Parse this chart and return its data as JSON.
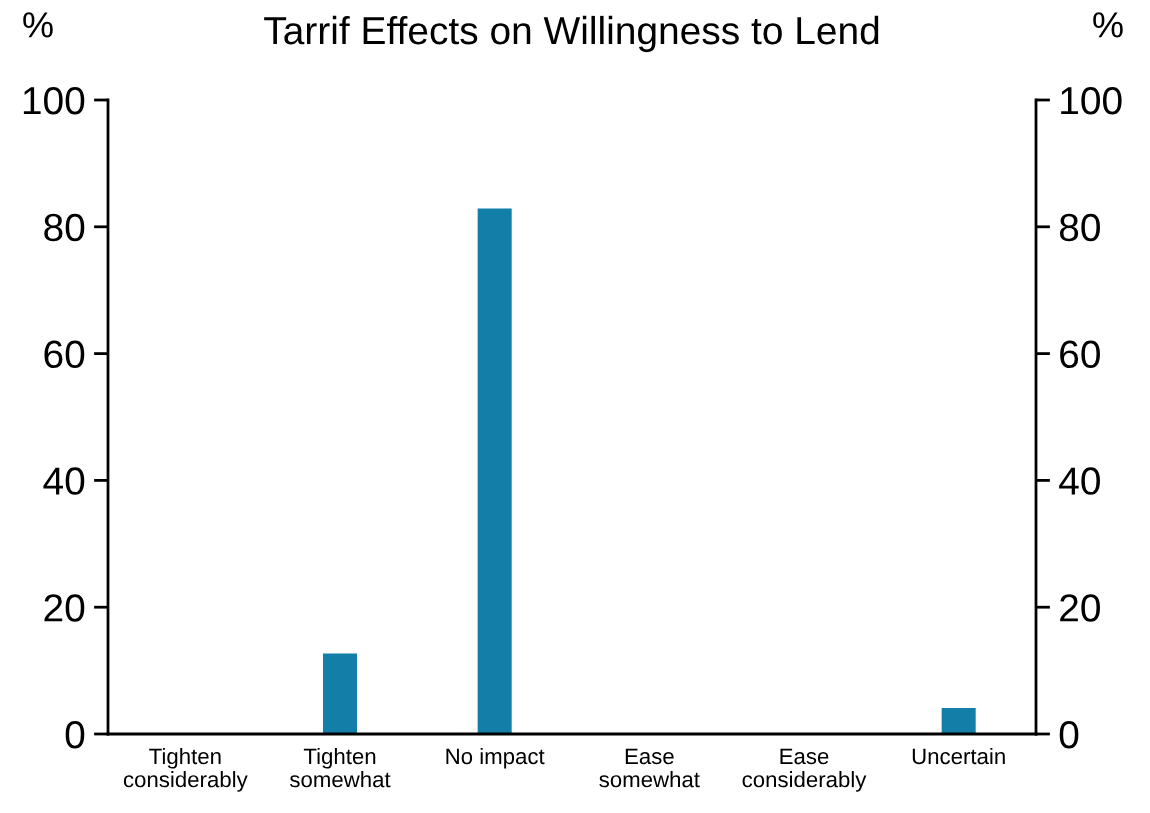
{
  "chart_data": {
    "type": "bar",
    "title": "Tarrif Effects on Willingness to Lend",
    "ylabel": "%",
    "y2label": "%",
    "categories": [
      "Tighten\nconsiderably",
      "Tighten\nsomewhat",
      "No impact",
      "Ease\nsomewhat",
      "Ease\nconsiderably",
      "Uncertain"
    ],
    "values": [
      0,
      12.7,
      82.9,
      0,
      0,
      4.1
    ],
    "color": "#137fa8",
    "ylim": [
      0,
      100
    ],
    "yticks": [
      0,
      20,
      40,
      60,
      80,
      100
    ],
    "y2lim": [
      0,
      100
    ],
    "y2ticks": [
      0,
      20,
      40,
      60,
      80,
      100
    ],
    "grid": false,
    "legend": false
  }
}
